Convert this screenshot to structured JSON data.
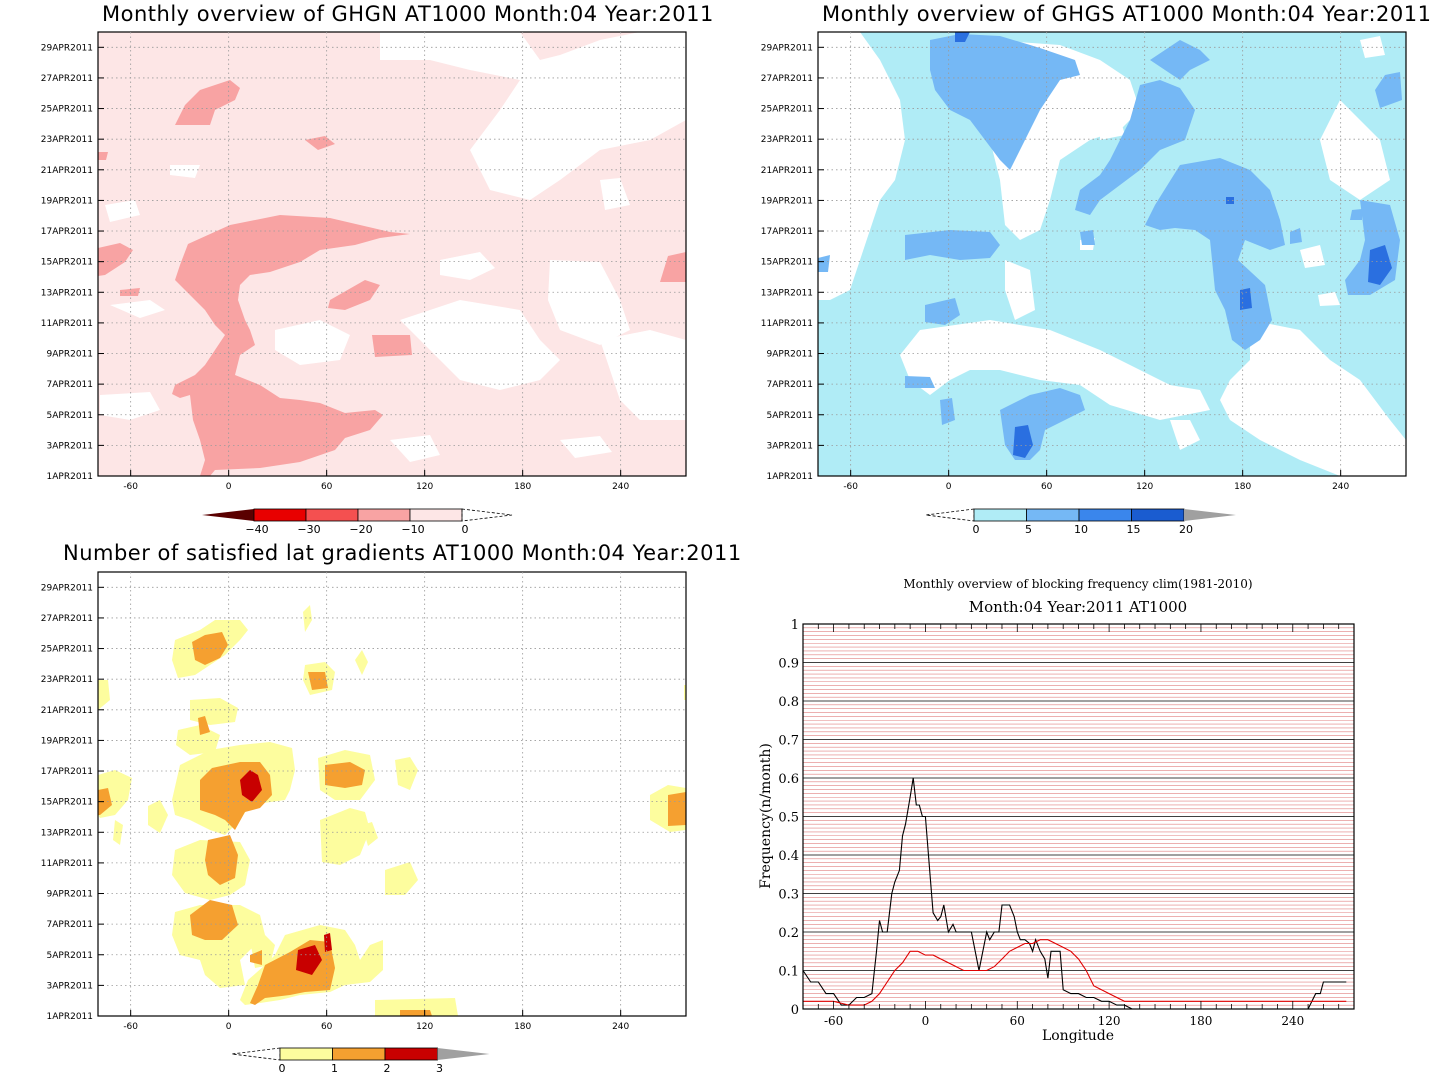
{
  "chart_data": [
    {
      "type": "heatmap",
      "title": "Monthly overview of GHGN AT1000 Month:04 Year:2011",
      "x_ticks": [
        "-60",
        "0",
        "60",
        "120",
        "180",
        "240"
      ],
      "y_ticks": [
        "1APR2011",
        "3APR2011",
        "5APR2011",
        "7APR2011",
        "9APR2011",
        "11APR2011",
        "13APR2011",
        "15APR2011",
        "17APR2011",
        "19APR2011",
        "21APR2011",
        "23APR2011",
        "25APR2011",
        "27APR2011",
        "29APR2011"
      ],
      "xlim": [
        -80,
        280
      ],
      "colorbar": {
        "ticks": [
          "−40",
          "−30",
          "−20",
          "−10",
          "0"
        ],
        "colors": [
          "#5a0000",
          "#e80000",
          "#f45050",
          "#f8a3a3",
          "#fde6e6"
        ]
      },
      "colors": {
        "background": "#fde6e6",
        "level": "#f8a3a3",
        "zero": "#ffffff"
      }
    },
    {
      "type": "heatmap",
      "title": "Monthly overview of GHGS AT1000 Month:04 Year:2011",
      "x_ticks": [
        "-60",
        "0",
        "60",
        "120",
        "180",
        "240"
      ],
      "y_ticks": [
        "1APR2011",
        "3APR2011",
        "5APR2011",
        "7APR2011",
        "9APR2011",
        "11APR2011",
        "13APR2011",
        "15APR2011",
        "17APR2011",
        "19APR2011",
        "21APR2011",
        "23APR2011",
        "25APR2011",
        "27APR2011",
        "29APR2011"
      ],
      "xlim": [
        -80,
        280
      ],
      "colorbar": {
        "ticks": [
          "0",
          "5",
          "10",
          "15",
          "20"
        ],
        "colors": [
          "#b0ecf6",
          "#75b8f5",
          "#3a86ec",
          "#1a5cd0",
          "#a0a0a0"
        ]
      },
      "colors": {
        "background": "#b0ecf6",
        "level": "#75b8f5",
        "high": "#2a6fe0"
      }
    },
    {
      "type": "heatmap",
      "title": "Number of satisfied lat gradients AT1000 Month:04 Year:2011",
      "x_ticks": [
        "-60",
        "0",
        "60",
        "120",
        "180",
        "240"
      ],
      "y_ticks": [
        "1APR2011",
        "3APR2011",
        "5APR2011",
        "7APR2011",
        "9APR2011",
        "11APR2011",
        "13APR2011",
        "15APR2011",
        "17APR2011",
        "19APR2011",
        "21APR2011",
        "23APR2011",
        "25APR2011",
        "27APR2011",
        "29APR2011"
      ],
      "xlim": [
        -80,
        280
      ],
      "colorbar": {
        "ticks": [
          "0",
          "1",
          "2",
          "3"
        ],
        "colors": [
          "#fdfd9e",
          "#f5a030",
          "#c80000",
          "#a0a0a0"
        ]
      },
      "colors": {
        "low": "#fdfd9e",
        "mid": "#f5a030",
        "high": "#c80000"
      }
    },
    {
      "type": "line",
      "title": "Monthly overview of blocking frequency clim(1981-2010)",
      "subtitle": "Month:04 Year:2011  AT1000",
      "xlabel": "Longitude",
      "ylabel": "Frequency(n/month)",
      "xlim": [
        -80,
        280
      ],
      "ylim": [
        0,
        1
      ],
      "x_ticks": [
        "-60",
        "0",
        "60",
        "120",
        "180",
        "240"
      ],
      "y_ticks": [
        "0",
        "0.1",
        "0.2",
        "0.3",
        "0.4",
        "0.5",
        "0.6",
        "0.7",
        "0.8",
        "0.9",
        "1"
      ],
      "grid": true,
      "series": [
        {
          "color": "#000000",
          "x": [
            -80,
            -75,
            -70,
            -65,
            -60,
            -55,
            -50,
            -45,
            -40,
            -35,
            -32,
            -30,
            -28,
            -25,
            -22,
            -20,
            -17,
            -15,
            -13,
            -10,
            -8,
            -6,
            -4,
            -2,
            0,
            3,
            5,
            8,
            10,
            12,
            15,
            18,
            20,
            22,
            25,
            28,
            30,
            35,
            40,
            42,
            45,
            48,
            50,
            55,
            58,
            60,
            62,
            65,
            68,
            70,
            72,
            75,
            78,
            80,
            82,
            85,
            88,
            90,
            95,
            100,
            105,
            110,
            115,
            120,
            125,
            130,
            135,
            140,
            160,
            180,
            200,
            220,
            240,
            250,
            255,
            258,
            260,
            265,
            270,
            275
          ],
          "y": [
            0.1,
            0.07,
            0.07,
            0.04,
            0.04,
            0.01,
            0.01,
            0.03,
            0.03,
            0.04,
            0.15,
            0.23,
            0.2,
            0.2,
            0.3,
            0.33,
            0.36,
            0.45,
            0.48,
            0.55,
            0.6,
            0.53,
            0.53,
            0.5,
            0.5,
            0.35,
            0.25,
            0.23,
            0.24,
            0.27,
            0.2,
            0.22,
            0.2,
            0.2,
            0.2,
            0.2,
            0.2,
            0.1,
            0.2,
            0.18,
            0.2,
            0.2,
            0.27,
            0.27,
            0.24,
            0.2,
            0.18,
            0.18,
            0.17,
            0.15,
            0.18,
            0.15,
            0.13,
            0.08,
            0.15,
            0.15,
            0.15,
            0.05,
            0.04,
            0.04,
            0.03,
            0.03,
            0.02,
            0.02,
            0.01,
            0.01,
            0.0,
            0.0,
            0.0,
            0.0,
            0.0,
            0.0,
            0.0,
            0.0,
            0.04,
            0.04,
            0.07,
            0.07,
            0.07,
            0.07
          ]
        },
        {
          "color": "#e00000",
          "x": [
            -80,
            -70,
            -60,
            -50,
            -40,
            -35,
            -30,
            -25,
            -20,
            -15,
            -10,
            -5,
            0,
            5,
            10,
            15,
            20,
            25,
            30,
            35,
            40,
            45,
            50,
            55,
            60,
            65,
            70,
            75,
            80,
            85,
            90,
            95,
            100,
            105,
            110,
            115,
            120,
            130,
            140,
            160,
            180,
            200,
            220,
            240,
            260,
            275
          ],
          "y": [
            0.02,
            0.02,
            0.02,
            0.01,
            0.01,
            0.02,
            0.04,
            0.07,
            0.1,
            0.12,
            0.15,
            0.15,
            0.14,
            0.14,
            0.13,
            0.12,
            0.11,
            0.1,
            0.1,
            0.1,
            0.1,
            0.11,
            0.13,
            0.15,
            0.16,
            0.17,
            0.17,
            0.18,
            0.18,
            0.17,
            0.16,
            0.15,
            0.13,
            0.1,
            0.06,
            0.05,
            0.04,
            0.02,
            0.02,
            0.02,
            0.02,
            0.02,
            0.02,
            0.02,
            0.02,
            0.02
          ]
        }
      ]
    }
  ]
}
